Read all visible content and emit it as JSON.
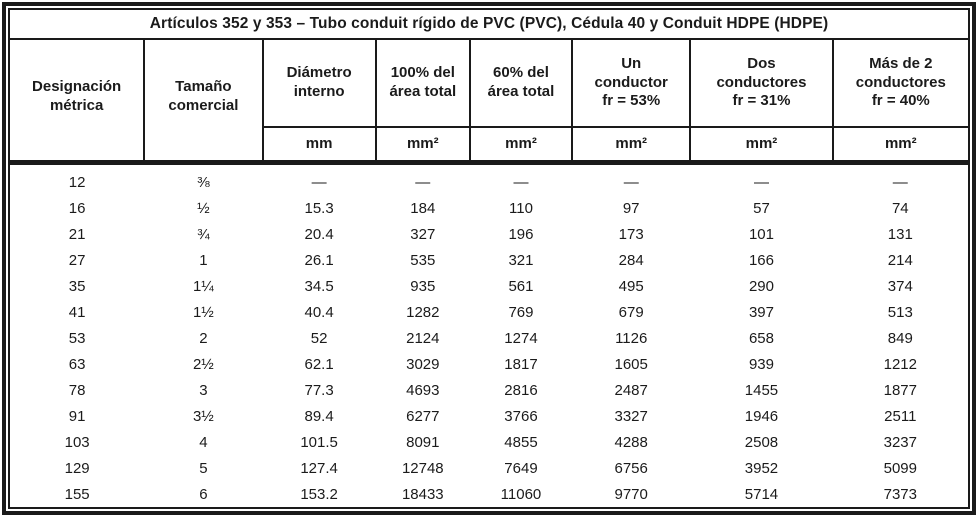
{
  "title": "Artículos 352 y 353 – Tubo conduit rígido de PVC (PVC), Cédula 40 y Conduit HDPE (HDPE)",
  "columns": [
    {
      "label": "Designación\nmétrica"
    },
    {
      "label": "Tamaño\ncomercial"
    },
    {
      "label": "Diámetro\ninterno",
      "unit": "mm"
    },
    {
      "label": "100% del\nárea total",
      "unit": "mm²"
    },
    {
      "label": "60% del\nárea total",
      "unit": "mm²"
    },
    {
      "label": "Un\nconductor\nfr = 53%",
      "unit": "mm²"
    },
    {
      "label": "Dos\nconductores\nfr = 31%",
      "unit": "mm²"
    },
    {
      "label": "Más de 2\nconductores\nfr = 40%",
      "unit": "mm²"
    }
  ],
  "rows": [
    [
      "12",
      "⅜",
      "—",
      "—",
      "—",
      "—",
      "—",
      "—"
    ],
    [
      "16",
      "½",
      "15.3",
      "184",
      "110",
      "97",
      "57",
      "74"
    ],
    [
      "21",
      "¾",
      "20.4",
      "327",
      "196",
      "173",
      "101",
      "131"
    ],
    [
      "27",
      "1",
      "26.1",
      "535",
      "321",
      "284",
      "166",
      "214"
    ],
    [
      "35",
      "1¼",
      "34.5",
      "935",
      "561",
      "495",
      "290",
      "374"
    ],
    [
      "41",
      "1½",
      "40.4",
      "1282",
      "769",
      "679",
      "397",
      "513"
    ],
    [
      "53",
      "2",
      "52",
      "2124",
      "1274",
      "1126",
      "658",
      "849"
    ],
    [
      "63",
      "2½",
      "62.1",
      "3029",
      "1817",
      "1605",
      "939",
      "1212"
    ],
    [
      "78",
      "3",
      "77.3",
      "4693",
      "2816",
      "2487",
      "1455",
      "1877"
    ],
    [
      "91",
      "3½",
      "89.4",
      "6277",
      "3766",
      "3327",
      "1946",
      "2511"
    ],
    [
      "103",
      "4",
      "101.5",
      "8091",
      "4855",
      "4288",
      "2508",
      "3237"
    ],
    [
      "129",
      "5",
      "127.4",
      "12748",
      "7649",
      "6756",
      "3952",
      "5099"
    ],
    [
      "155",
      "6",
      "153.2",
      "18433",
      "11060",
      "9770",
      "5714",
      "7373"
    ]
  ]
}
